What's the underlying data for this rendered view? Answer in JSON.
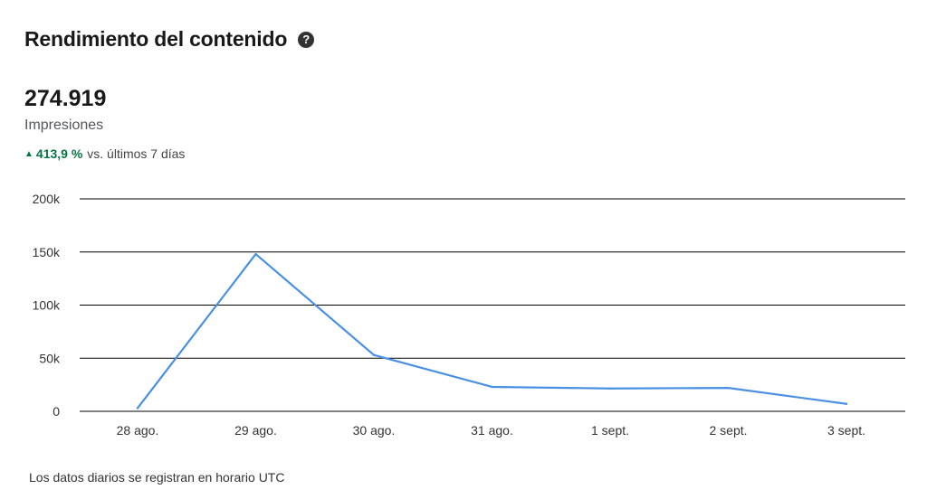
{
  "header": {
    "title": "Rendimiento del contenido",
    "help_icon": "question-circle-icon",
    "help_glyph": "?"
  },
  "metric": {
    "value": "274.919",
    "label": "Impresiones",
    "change_icon": "triangle-up-icon",
    "change_glyph": "▲",
    "change_value": "413,9 %",
    "change_text": "vs. últimos 7 días"
  },
  "colors": {
    "line": "#4a90e2",
    "positive": "#057642",
    "gridline": "#000000"
  },
  "chart_data": {
    "type": "line",
    "title": "",
    "xlabel": "",
    "ylabel": "",
    "categories": [
      "28 ago.",
      "29 ago.",
      "30 ago.",
      "31 ago.",
      "1 sept.",
      "2 sept.",
      "3 sept."
    ],
    "series": [
      {
        "values": [
          3000,
          148000,
          53000,
          23000,
          21500,
          22000,
          7000
        ]
      }
    ],
    "ylim": [
      0,
      200000
    ],
    "yticks": [
      0,
      50000,
      100000,
      150000,
      200000
    ],
    "ytick_labels": [
      "0",
      "50k",
      "100k",
      "150k",
      "200k"
    ],
    "grid": true,
    "legend": "none"
  },
  "footnote": "Los datos diarios se registran en horario UTC"
}
